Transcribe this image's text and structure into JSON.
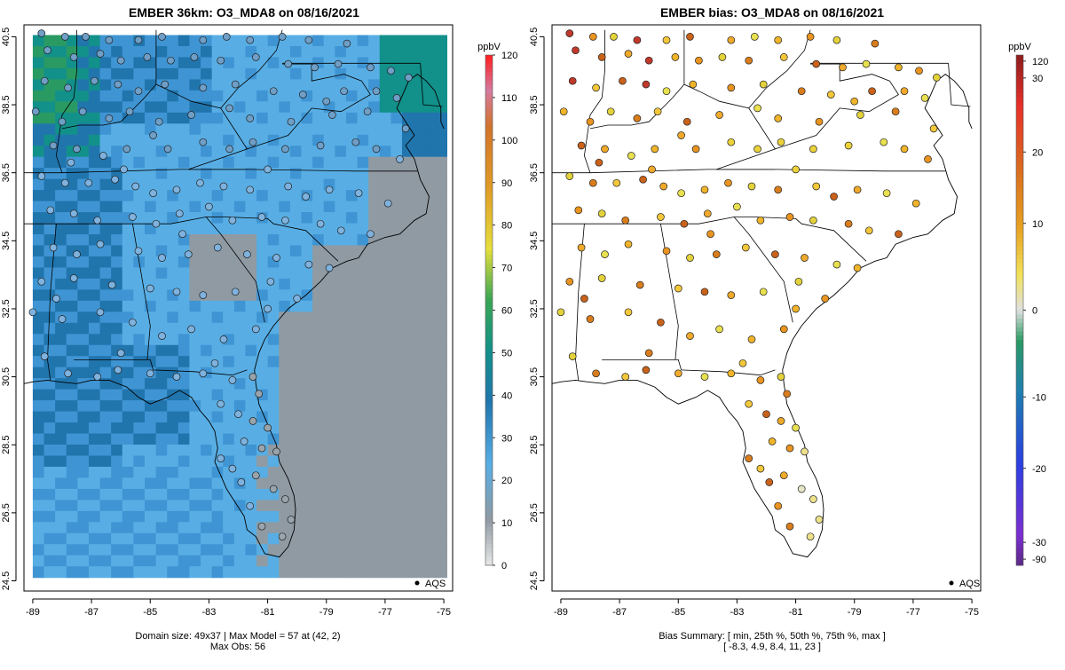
{
  "left_panel": {
    "title": "EMBER 36km: O3_MDA8 on 08/16/2021",
    "caption_line1": "Domain size: 49x37 | Max Model = 57 at (42, 2)",
    "caption_line2": "Max Obs: 56",
    "legend_label": "AQS",
    "colorbar": {
      "unit": "ppbV",
      "ticks": [
        "0",
        "10",
        "20",
        "30",
        "40",
        "50",
        "60",
        "70",
        "80",
        "90",
        "100",
        "110",
        "120"
      ],
      "tick_values": [
        0,
        10,
        20,
        30,
        40,
        50,
        60,
        70,
        80,
        90,
        100,
        110,
        120
      ],
      "range": [
        0,
        120
      ]
    }
  },
  "right_panel": {
    "title": "EMBER bias: O3_MDA8 on 08/16/2021",
    "caption_line1": "Bias Summary: [ min, 25th %, 50th %, 75th %, max ]",
    "caption_line2": "[ -8.3,   4.9,   8.4,   11,   23 ]",
    "legend_label": "AQS",
    "colorbar": {
      "unit": "ppbV",
      "ticks": [
        "-90",
        "-30",
        "-20",
        "-10",
        "0",
        "10",
        "20",
        "30",
        "120"
      ],
      "tick_values": [
        -90,
        -30,
        -20,
        -10,
        0,
        10,
        20,
        30,
        120
      ]
    }
  },
  "axes": {
    "x_ticks": [
      "-89",
      "-87",
      "-85",
      "-83",
      "-81",
      "-79",
      "-77",
      "-75"
    ],
    "x_values": [
      -89,
      -87,
      -85,
      -83,
      -81,
      -79,
      -77,
      -75
    ],
    "y_ticks": [
      "24.5",
      "26.5",
      "28.5",
      "30.5",
      "32.5",
      "34.5",
      "36.5",
      "38.5",
      "40.5"
    ],
    "y_values": [
      24.5,
      26.5,
      28.5,
      30.5,
      32.5,
      34.5,
      36.5,
      38.5,
      40.5
    ],
    "lon_range": [
      -89.3,
      -74.7
    ],
    "lat_range": [
      24.2,
      40.85
    ]
  },
  "colors": {
    "model_gray": "#8f9aa3",
    "model_lightblue": "#58aee4",
    "model_blue": "#3f95d3",
    "model_darkblue": "#2175ad",
    "model_teal": "#12908a",
    "model_green": "#2a9a63"
  },
  "stations": [
    [
      -88.7,
      40.6
    ],
    [
      -87.9,
      40.5
    ],
    [
      -87.2,
      40.5
    ],
    [
      -86.4,
      40.4
    ],
    [
      -85.4,
      40.4
    ],
    [
      -84.6,
      40.5
    ],
    [
      -83.2,
      40.4
    ],
    [
      -82.4,
      40.5
    ],
    [
      -81.6,
      40.4
    ],
    [
      -80.5,
      40.5
    ],
    [
      -79.6,
      40.4
    ],
    [
      -78.3,
      40.3
    ],
    [
      -88.5,
      40.1
    ],
    [
      -87.6,
      39.9
    ],
    [
      -86.7,
      40.0
    ],
    [
      -86.0,
      39.8
    ],
    [
      -85.1,
      39.9
    ],
    [
      -84.3,
      39.8
    ],
    [
      -83.5,
      39.9
    ],
    [
      -82.6,
      39.8
    ],
    [
      -81.4,
      39.9
    ],
    [
      -80.3,
      39.7
    ],
    [
      -79.4,
      39.6
    ],
    [
      -78.6,
      39.7
    ],
    [
      -77.5,
      39.6
    ],
    [
      -76.8,
      39.5
    ],
    [
      -76.2,
      39.3
    ],
    [
      -88.6,
      39.2
    ],
    [
      -87.8,
      39.0
    ],
    [
      -86.9,
      39.2
    ],
    [
      -86.1,
      39.1
    ],
    [
      -85.4,
      38.9
    ],
    [
      -84.5,
      39.1
    ],
    [
      -83.2,
      39.0
    ],
    [
      -82.1,
      39.1
    ],
    [
      -80.8,
      38.9
    ],
    [
      -79.8,
      38.8
    ],
    [
      -78.4,
      38.9
    ],
    [
      -77.3,
      38.9
    ],
    [
      -76.6,
      38.7
    ],
    [
      -88.9,
      38.3
    ],
    [
      -88.0,
      38.0
    ],
    [
      -87.3,
      38.3
    ],
    [
      -86.4,
      38.1
    ],
    [
      -85.7,
      38.3
    ],
    [
      -84.7,
      38.0
    ],
    [
      -83.6,
      38.2
    ],
    [
      -82.3,
      38.4
    ],
    [
      -81.6,
      38.1
    ],
    [
      -80.2,
      38.0
    ],
    [
      -78.8,
      38.2
    ],
    [
      -77.6,
      38.3
    ],
    [
      -76.3,
      37.8
    ],
    [
      -88.3,
      37.3
    ],
    [
      -87.5,
      37.2
    ],
    [
      -86.6,
      37.0
    ],
    [
      -85.8,
      37.2
    ],
    [
      -84.4,
      37.2
    ],
    [
      -83.2,
      37.4
    ],
    [
      -82.3,
      37.2
    ],
    [
      -81.5,
      37.4
    ],
    [
      -80.4,
      37.2
    ],
    [
      -79.2,
      37.3
    ],
    [
      -78.0,
      37.4
    ],
    [
      -77.3,
      37.2
    ],
    [
      -76.5,
      36.9
    ],
    [
      -88.7,
      36.4
    ],
    [
      -87.9,
      36.2
    ],
    [
      -87.1,
      36.2
    ],
    [
      -86.2,
      36.3
    ],
    [
      -85.5,
      36.1
    ],
    [
      -84.9,
      35.9
    ],
    [
      -84.1,
      36.0
    ],
    [
      -83.3,
      36.2
    ],
    [
      -82.5,
      36.1
    ],
    [
      -81.6,
      36.0
    ],
    [
      -80.3,
      36.1
    ],
    [
      -79.7,
      35.8
    ],
    [
      -78.9,
      36.0
    ],
    [
      -77.9,
      35.9
    ],
    [
      -76.9,
      35.6
    ],
    [
      -88.4,
      35.4
    ],
    [
      -87.6,
      35.3
    ],
    [
      -86.8,
      35.1
    ],
    [
      -85.6,
      35.2
    ],
    [
      -84.8,
      35.0
    ],
    [
      -84.0,
      35.3
    ],
    [
      -83.0,
      35.5
    ],
    [
      -82.2,
      35.1
    ],
    [
      -81.2,
      35.2
    ],
    [
      -80.4,
      35.1
    ],
    [
      -79.2,
      35.0
    ],
    [
      -78.5,
      34.8
    ],
    [
      -77.5,
      34.7
    ],
    [
      -88.3,
      34.3
    ],
    [
      -87.5,
      34.1
    ],
    [
      -86.7,
      34.4
    ],
    [
      -85.4,
      34.2
    ],
    [
      -84.6,
      34.0
    ],
    [
      -83.7,
      34.1
    ],
    [
      -82.7,
      34.3
    ],
    [
      -81.7,
      34.1
    ],
    [
      -80.7,
      34.0
    ],
    [
      -79.6,
      33.8
    ],
    [
      -78.9,
      33.7
    ],
    [
      -88.7,
      33.3
    ],
    [
      -87.6,
      33.4
    ],
    [
      -86.3,
      33.2
    ],
    [
      -85.0,
      33.1
    ],
    [
      -84.1,
      33.0
    ],
    [
      -83.2,
      32.9
    ],
    [
      -82.1,
      33.0
    ],
    [
      -81.0,
      32.5
    ],
    [
      -80.0,
      32.8
    ],
    [
      -89.0,
      32.4
    ],
    [
      -88.0,
      32.2
    ],
    [
      -86.7,
      32.4
    ],
    [
      -85.6,
      32.1
    ],
    [
      -84.6,
      31.7
    ],
    [
      -83.6,
      31.9
    ],
    [
      -82.5,
      31.6
    ],
    [
      -81.4,
      31.9
    ],
    [
      -88.6,
      31.1
    ],
    [
      -87.8,
      30.6
    ],
    [
      -86.8,
      30.5
    ],
    [
      -86.1,
      30.7
    ],
    [
      -85.0,
      30.6
    ],
    [
      -84.1,
      30.5
    ],
    [
      -83.2,
      30.6
    ],
    [
      -82.2,
      30.4
    ],
    [
      -81.5,
      30.5
    ],
    [
      -81.3,
      30.0
    ],
    [
      -82.6,
      29.7
    ],
    [
      -82.0,
      29.4
    ],
    [
      -81.5,
      29.2
    ],
    [
      -81.0,
      29.0
    ],
    [
      -81.8,
      28.6
    ],
    [
      -81.2,
      28.4
    ],
    [
      -80.7,
      28.3
    ],
    [
      -82.6,
      28.1
    ],
    [
      -82.2,
      27.8
    ],
    [
      -81.9,
      27.4
    ],
    [
      -81.4,
      27.6
    ],
    [
      -80.8,
      27.2
    ],
    [
      -80.4,
      26.9
    ],
    [
      -81.6,
      26.7
    ],
    [
      -80.2,
      26.3
    ],
    [
      -81.2,
      26.1
    ],
    [
      -80.5,
      25.8
    ],
    [
      -87.7,
      36.8
    ],
    [
      -84.9,
      37.6
    ],
    [
      -81.0,
      36.6
    ],
    [
      -79.0,
      38.6
    ],
    [
      -83.9,
      34.7
    ],
    [
      -80.9,
      33.3
    ],
    [
      -86.0,
      31.2
    ],
    [
      -82.8,
      30.9
    ],
    [
      -88.2,
      32.8
    ],
    [
      -85.9,
      36.6
    ]
  ]
}
